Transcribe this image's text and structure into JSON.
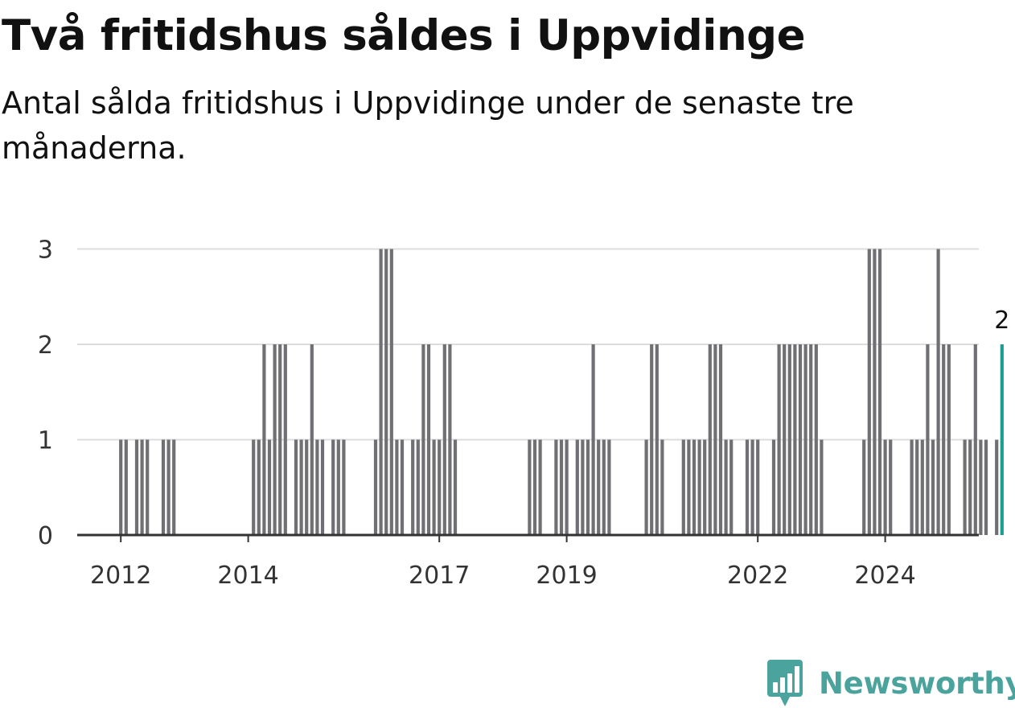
{
  "header": {
    "title": "Två fritidshus såldes i Uppvidinge",
    "subtitle": "Antal sålda fritidshus i Uppvidinge under de senaste tre månaderna."
  },
  "brand": {
    "name": "Newsworthy",
    "icon": "newsworthy-logo-icon"
  },
  "colors": {
    "bar": "#707074",
    "highlight": "#1a9e91",
    "grid": "#dddddd",
    "axis": "#333333",
    "brand": "#4aa39c"
  },
  "chart_data": {
    "type": "bar",
    "x_unit": "month",
    "start": "2011-01",
    "ylim": [
      0,
      3
    ],
    "y_ticks": [
      0,
      1,
      2,
      3
    ],
    "x_ticks": [
      "2012",
      "2014",
      "2017",
      "2019",
      "2022",
      "2024"
    ],
    "grid": true,
    "values": [
      0,
      0,
      0,
      0,
      0,
      0,
      0,
      0,
      0,
      0,
      0,
      0,
      1,
      1,
      0,
      1,
      1,
      1,
      0,
      0,
      1,
      1,
      1,
      0,
      0,
      0,
      0,
      0,
      0,
      0,
      0,
      0,
      0,
      0,
      0,
      0,
      0,
      1,
      1,
      2,
      1,
      2,
      2,
      2,
      0,
      1,
      1,
      1,
      2,
      1,
      1,
      0,
      1,
      1,
      1,
      0,
      0,
      0,
      0,
      0,
      1,
      3,
      3,
      3,
      1,
      1,
      0,
      1,
      1,
      2,
      2,
      1,
      1,
      2,
      2,
      1,
      0,
      0,
      0,
      0,
      0,
      0,
      0,
      0,
      0,
      0,
      0,
      0,
      0,
      1,
      1,
      1,
      0,
      0,
      1,
      1,
      1,
      0,
      1,
      1,
      1,
      2,
      1,
      1,
      1,
      0,
      0,
      0,
      0,
      0,
      0,
      1,
      2,
      2,
      1,
      0,
      0,
      0,
      1,
      1,
      1,
      1,
      1,
      2,
      2,
      2,
      1,
      1,
      0,
      0,
      1,
      1,
      1,
      0,
      0,
      1,
      2,
      2,
      2,
      2,
      2,
      2,
      2,
      2,
      1,
      0,
      0,
      0,
      0,
      0,
      0,
      0,
      1,
      3,
      3,
      3,
      1,
      1,
      0,
      0,
      0,
      1,
      1,
      1,
      2,
      1,
      3,
      2,
      2,
      0,
      0,
      1,
      1,
      2,
      1,
      1,
      0,
      1,
      2
    ],
    "last_value_label": "2"
  }
}
